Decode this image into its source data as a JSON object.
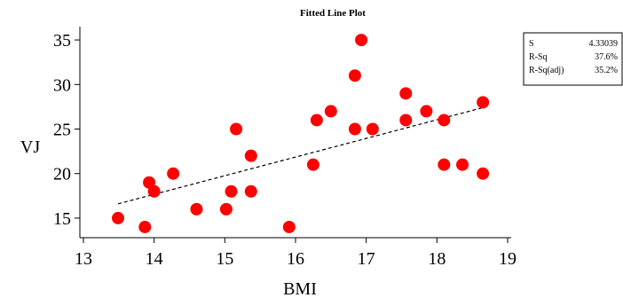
{
  "chart_data": {
    "type": "scatter",
    "title": "Fitted Line Plot",
    "xlabel": "BMI",
    "ylabel": "VJ",
    "xlim": [
      12.95,
      19.05
    ],
    "ylim": [
      13.0,
      36.5
    ],
    "xticks": [
      "13",
      "14",
      "15",
      "16",
      "17",
      "18",
      "19"
    ],
    "yticks": [
      "15",
      "20",
      "25",
      "30",
      "35"
    ],
    "grid": false,
    "marker_color": "#ff0000",
    "fit_line_color": "#000000",
    "points": [
      {
        "x": 13.49,
        "y": 15
      },
      {
        "x": 13.87,
        "y": 14
      },
      {
        "x": 13.93,
        "y": 19
      },
      {
        "x": 14.0,
        "y": 18
      },
      {
        "x": 14.27,
        "y": 20
      },
      {
        "x": 14.6,
        "y": 16
      },
      {
        "x": 15.02,
        "y": 16
      },
      {
        "x": 15.09,
        "y": 18
      },
      {
        "x": 15.16,
        "y": 25
      },
      {
        "x": 15.37,
        "y": 22
      },
      {
        "x": 15.37,
        "y": 18
      },
      {
        "x": 15.91,
        "y": 14
      },
      {
        "x": 16.25,
        "y": 21
      },
      {
        "x": 16.3,
        "y": 26
      },
      {
        "x": 16.5,
        "y": 27
      },
      {
        "x": 16.84,
        "y": 31
      },
      {
        "x": 16.84,
        "y": 25
      },
      {
        "x": 16.93,
        "y": 35
      },
      {
        "x": 17.09,
        "y": 25
      },
      {
        "x": 17.56,
        "y": 29
      },
      {
        "x": 17.56,
        "y": 26
      },
      {
        "x": 17.85,
        "y": 27
      },
      {
        "x": 18.1,
        "y": 21
      },
      {
        "x": 18.1,
        "y": 26
      },
      {
        "x": 18.36,
        "y": 21
      },
      {
        "x": 18.65,
        "y": 20
      },
      {
        "x": 18.65,
        "y": 28
      }
    ],
    "fit_line": {
      "x": [
        13.49,
        18.65
      ],
      "y": [
        16.6,
        27.4
      ],
      "style": "dashed"
    },
    "stats": [
      {
        "label": "S",
        "value": "4.33039"
      },
      {
        "label": "R-Sq",
        "value": "37.6%"
      },
      {
        "label": "R-Sq(adj)",
        "value": "35.2%"
      }
    ]
  }
}
